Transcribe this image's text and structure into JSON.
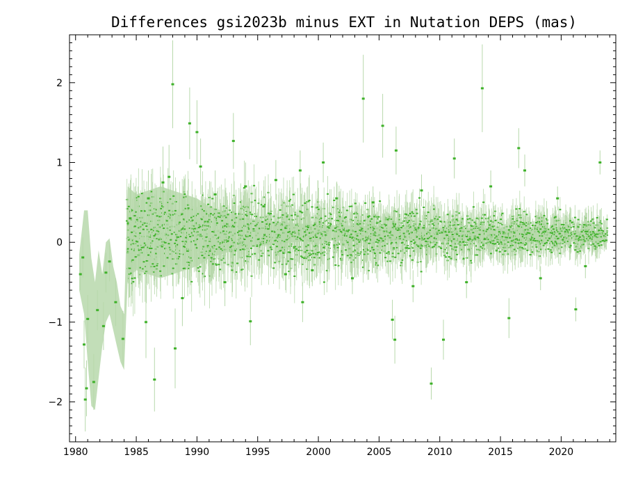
{
  "chart_data": {
    "type": "scatter",
    "title": "Differences gsi2023b minus EXT in Nutation DEPS (mas)",
    "xlabel": "",
    "ylabel": "",
    "xlim": [
      1979.5,
      2024.5
    ],
    "ylim": [
      -2.5,
      2.6
    ],
    "x_ticks": [
      1980,
      1985,
      1990,
      1995,
      2000,
      2005,
      2010,
      2015,
      2020
    ],
    "x_tick_labels": [
      "1980",
      "1985",
      "1990",
      "1995",
      "2000",
      "2005",
      "2010",
      "2015",
      "2020"
    ],
    "y_ticks": [
      -2,
      -1,
      0,
      1,
      2
    ],
    "y_tick_labels": [
      "−2",
      "−1",
      "0",
      "1",
      "2"
    ],
    "grid": false,
    "legend": "none",
    "colors": {
      "points": "#3fb22a",
      "error_bars": "#b7d8ab",
      "axes": "#000000"
    },
    "series": [
      {
        "values": [
          {
            "x": 1980.4,
            "y": -0.4,
            "err": 0.2
          },
          {
            "x": 1980.6,
            "y": -0.19,
            "err": 0.25
          },
          {
            "x": 1980.7,
            "y": -1.28,
            "err": 0.3
          },
          {
            "x": 1980.8,
            "y": -1.97,
            "err": 0.4
          },
          {
            "x": 1980.9,
            "y": -1.83,
            "err": 0.35
          },
          {
            "x": 1981.0,
            "y": -0.96,
            "err": 0.3
          },
          {
            "x": 1981.5,
            "y": -1.75,
            "err": 0.35
          },
          {
            "x": 1981.8,
            "y": -0.85,
            "err": 0.25
          },
          {
            "x": 1982.3,
            "y": -1.05,
            "err": 0.3
          },
          {
            "x": 1982.5,
            "y": -0.38,
            "err": 0.25
          },
          {
            "x": 1982.8,
            "y": -0.24,
            "err": 0.25
          },
          {
            "x": 1983.3,
            "y": -0.75,
            "err": 0.3
          },
          {
            "x": 1983.9,
            "y": -1.21,
            "err": 0.35
          },
          {
            "x": 1984.5,
            "y": 0.3,
            "err": 0.4
          },
          {
            "x": 1985.8,
            "y": -1.0,
            "err": 0.45
          },
          {
            "x": 1986.5,
            "y": -1.72,
            "err": 0.4
          },
          {
            "x": 1987.2,
            "y": 0.75,
            "err": 0.45
          },
          {
            "x": 1987.7,
            "y": 0.82,
            "err": 0.4
          },
          {
            "x": 1988.0,
            "y": 1.98,
            "err": 0.55
          },
          {
            "x": 1988.2,
            "y": -1.33,
            "err": 0.5
          },
          {
            "x": 1989.4,
            "y": 1.49,
            "err": 0.45
          },
          {
            "x": 1990.0,
            "y": 1.38,
            "err": 0.4
          },
          {
            "x": 1990.3,
            "y": 0.95,
            "err": 0.35
          },
          {
            "x": 1993.0,
            "y": 1.27,
            "err": 0.35
          },
          {
            "x": 1994.0,
            "y": 0.7,
            "err": 0.3
          },
          {
            "x": 1994.4,
            "y": -0.99,
            "err": 0.3
          },
          {
            "x": 1996.5,
            "y": 0.78,
            "err": 0.25
          },
          {
            "x": 1998.5,
            "y": 0.9,
            "err": 0.25
          },
          {
            "x": 1998.7,
            "y": -0.75,
            "err": 0.25
          },
          {
            "x": 2000.4,
            "y": 1.0,
            "err": 0.25
          },
          {
            "x": 2003.7,
            "y": 1.8,
            "err": 0.55
          },
          {
            "x": 2005.3,
            "y": 1.46,
            "err": 0.4
          },
          {
            "x": 2006.3,
            "y": -1.22,
            "err": 0.3
          },
          {
            "x": 2006.4,
            "y": 1.15,
            "err": 0.3
          },
          {
            "x": 2006.1,
            "y": -0.97,
            "err": 0.25
          },
          {
            "x": 2009.3,
            "y": -1.77,
            "err": 0.2
          },
          {
            "x": 2010.3,
            "y": -1.22,
            "err": 0.25
          },
          {
            "x": 2011.2,
            "y": 1.05,
            "err": 0.25
          },
          {
            "x": 2013.5,
            "y": 1.93,
            "err": 0.55
          },
          {
            "x": 2015.7,
            "y": -0.95,
            "err": 0.25
          },
          {
            "x": 2016.5,
            "y": 1.18,
            "err": 0.25
          },
          {
            "x": 2017.0,
            "y": 0.9,
            "err": 0.2
          },
          {
            "x": 2021.2,
            "y": -0.84,
            "err": 0.15
          },
          {
            "x": 2023.2,
            "y": 1.0,
            "err": 0.15
          },
          {
            "x": 1986.0,
            "y": 0.55,
            "err": 0.35
          },
          {
            "x": 1988.8,
            "y": -0.7,
            "err": 0.35
          },
          {
            "x": 1991.5,
            "y": 0.6,
            "err": 0.3
          },
          {
            "x": 1992.3,
            "y": -0.5,
            "err": 0.3
          },
          {
            "x": 1995.5,
            "y": 0.45,
            "err": 0.25
          },
          {
            "x": 1997.3,
            "y": -0.4,
            "err": 0.2
          },
          {
            "x": 1999.5,
            "y": -0.35,
            "err": 0.2
          },
          {
            "x": 2001.5,
            "y": 0.55,
            "err": 0.2
          },
          {
            "x": 2002.8,
            "y": -0.45,
            "err": 0.2
          },
          {
            "x": 2004.5,
            "y": 0.5,
            "err": 0.2
          },
          {
            "x": 2007.8,
            "y": -0.55,
            "err": 0.2
          },
          {
            "x": 2008.5,
            "y": 0.65,
            "err": 0.2
          },
          {
            "x": 2012.2,
            "y": -0.5,
            "err": 0.2
          },
          {
            "x": 2014.2,
            "y": 0.7,
            "err": 0.2
          },
          {
            "x": 2018.3,
            "y": -0.45,
            "err": 0.15
          },
          {
            "x": 2019.7,
            "y": 0.55,
            "err": 0.15
          },
          {
            "x": 2022.0,
            "y": -0.3,
            "err": 0.15
          }
        ]
      }
    ],
    "band": {
      "x": [
        1980.3,
        1980.7,
        1981.0,
        1981.3,
        1981.6,
        1981.9,
        1982.2,
        1982.5,
        1982.8,
        1983.1,
        1983.4,
        1983.7,
        1984.0,
        1984.3,
        1985.0,
        1986.0,
        1987.0,
        1988.0,
        1989.0,
        1990.0,
        1991.0,
        1992.0,
        1993.0,
        1995.0,
        1998.0,
        2000.0,
        2005.0,
        2010.0,
        2015.0,
        2020.0,
        2023.5
      ],
      "lower": [
        -0.6,
        -0.9,
        -1.5,
        -2.05,
        -2.1,
        -1.7,
        -1.3,
        -1.0,
        -0.9,
        -1.1,
        -1.3,
        -1.5,
        -1.6,
        -0.45,
        -0.35,
        -0.4,
        -0.45,
        -0.4,
        -0.35,
        -0.3,
        -0.2,
        -0.15,
        -0.1,
        -0.05,
        0.0,
        0.02,
        0.02,
        0.02,
        0.01,
        0.01,
        0.0
      ],
      "upper": [
        -0.15,
        0.4,
        0.4,
        -0.2,
        -0.5,
        -0.1,
        -0.4,
        0.0,
        0.05,
        -0.3,
        -0.5,
        -0.8,
        -0.9,
        0.7,
        0.6,
        0.65,
        0.7,
        0.65,
        0.6,
        0.55,
        0.45,
        0.4,
        0.35,
        0.28,
        0.24,
        0.22,
        0.2,
        0.18,
        0.17,
        0.15,
        0.14
      ]
    },
    "dense_cloud": {
      "x_range": [
        1984.2,
        2023.8
      ],
      "center": 0.1,
      "spread_start": 0.3,
      "spread_end": 0.1
    }
  }
}
